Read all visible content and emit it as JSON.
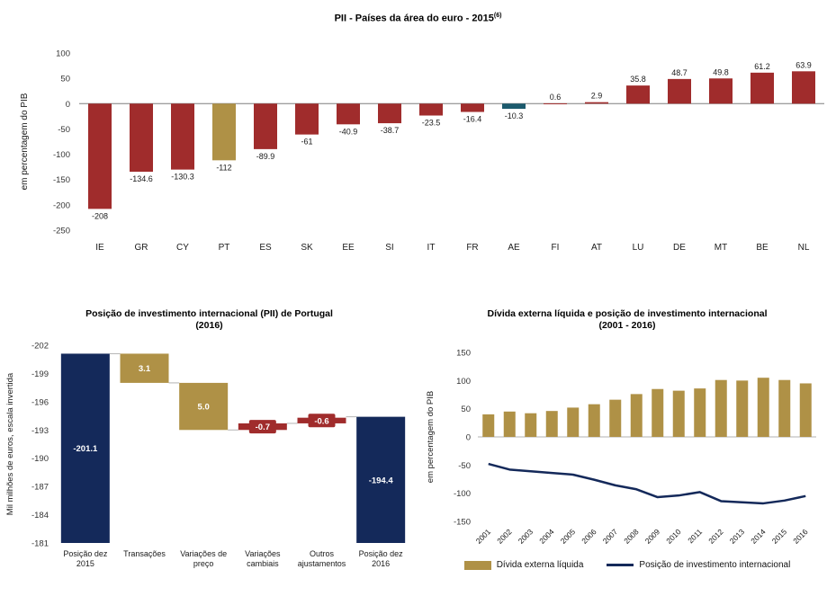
{
  "colors": {
    "maroon": "#A02C2C",
    "gold": "#AF9146",
    "navy": "#14295A",
    "teal": "#1C5A6D",
    "axis_text": "#333333",
    "label_text": "#1A1A1A",
    "zero_line": "#7F7F7F",
    "connector": "#B3B3B3"
  },
  "chart_data": [
    {
      "id": "euro-pii",
      "type": "bar",
      "title": "PII - Países da área do euro - 2015",
      "title_superscript": "(6)",
      "ylabel": "em percentagem do PIB",
      "ylim": [
        -250,
        100
      ],
      "yticks": [
        100,
        50,
        0,
        -50,
        -100,
        -150,
        -200,
        -250
      ],
      "grid": false,
      "legend_position": "none",
      "categories": [
        "IE",
        "GR",
        "CY",
        "PT",
        "ES",
        "SK",
        "EE",
        "SI",
        "IT",
        "FR",
        "AE",
        "FI",
        "AT",
        "LU",
        "DE",
        "MT",
        "BE",
        "NL"
      ],
      "values": [
        -208,
        -134.6,
        -130.3,
        -112,
        -89.9,
        -61,
        -40.9,
        -38.7,
        -23.5,
        -16.4,
        -10.3,
        0.6,
        2.9,
        35.8,
        48.7,
        49.8,
        61.2,
        63.9
      ],
      "value_labels": [
        "-208",
        "-134.6",
        "-130.3",
        "-112",
        "-89.9",
        "-61",
        "-40.9",
        "-38.7",
        "-23.5",
        "-16.4",
        "-10.3",
        "0.6",
        "2.9",
        "35.8",
        "48.7",
        "49.8",
        "61.2",
        "63.9"
      ],
      "bar_color_keys": [
        "maroon",
        "maroon",
        "maroon",
        "gold",
        "maroon",
        "maroon",
        "maroon",
        "maroon",
        "maroon",
        "maroon",
        "teal",
        "maroon",
        "maroon",
        "maroon",
        "maroon",
        "maroon",
        "maroon",
        "maroon"
      ]
    },
    {
      "id": "pii-portugal-waterfall",
      "type": "waterfall",
      "title": "Posição de investimento internacional (PII) de Portugal",
      "subtitle": "(2016)",
      "ylabel": "Mil milhões de euros, escala invertida",
      "y_top": -202,
      "y_bottom": -181,
      "yticks": [
        -202,
        -199,
        -196,
        -193,
        -190,
        -187,
        -184,
        -181
      ],
      "grid": false,
      "bars": [
        {
          "category_lines": [
            "Posição dez",
            "2015"
          ],
          "from": -201.1,
          "to": -181,
          "value_label": "-201.1",
          "color_key": "navy"
        },
        {
          "category_lines": [
            "Transações"
          ],
          "from": -201.1,
          "to": -198.0,
          "value_label": "3.1",
          "color_key": "gold"
        },
        {
          "category_lines": [
            "Variações de",
            "preço"
          ],
          "from": -198.0,
          "to": -193.0,
          "value_label": "5.0",
          "color_key": "gold"
        },
        {
          "category_lines": [
            "Variações",
            "cambiais"
          ],
          "from": -193.0,
          "to": -193.7,
          "value_label": "-0.7",
          "color_key": "maroon"
        },
        {
          "category_lines": [
            "Outros",
            "ajustamentos"
          ],
          "from": -193.7,
          "to": -194.3,
          "value_label": "-0.6",
          "color_key": "maroon"
        },
        {
          "category_lines": [
            "Posição dez",
            "2016"
          ],
          "from": -194.4,
          "to": -181,
          "value_label": "-194.4",
          "color_key": "navy"
        }
      ]
    },
    {
      "id": "divida-externa-combo",
      "type": "bar+line",
      "title": "Dívida externa líquida e posição de investimento internacional",
      "subtitle": "(2001 - 2016)",
      "ylabel": "em percentagem do PIB",
      "ylim": [
        -150,
        150
      ],
      "yticks": [
        150,
        100,
        50,
        0,
        -50,
        -100,
        -150
      ],
      "grid": false,
      "legend_position": "bottom",
      "categories": [
        "2001",
        "2002",
        "2003",
        "2004",
        "2005",
        "2006",
        "2007",
        "2008",
        "2009",
        "2010",
        "2011",
        "2012",
        "2013",
        "2014",
        "2015",
        "2016"
      ],
      "series": [
        {
          "name": "Dívida externa líquida",
          "type": "bar",
          "color_key": "gold",
          "values": [
            40,
            45,
            42,
            46,
            52,
            58,
            66,
            76,
            85,
            82,
            86,
            101,
            100,
            105,
            101,
            95
          ]
        },
        {
          "name": "Posição de investimento internacional",
          "type": "line",
          "color_key": "navy",
          "values": [
            -48,
            -58,
            -61,
            -64,
            -67,
            -76,
            -86,
            -93,
            -107,
            -104,
            -98,
            -114,
            -116,
            -118,
            -113,
            -105
          ]
        }
      ]
    }
  ]
}
